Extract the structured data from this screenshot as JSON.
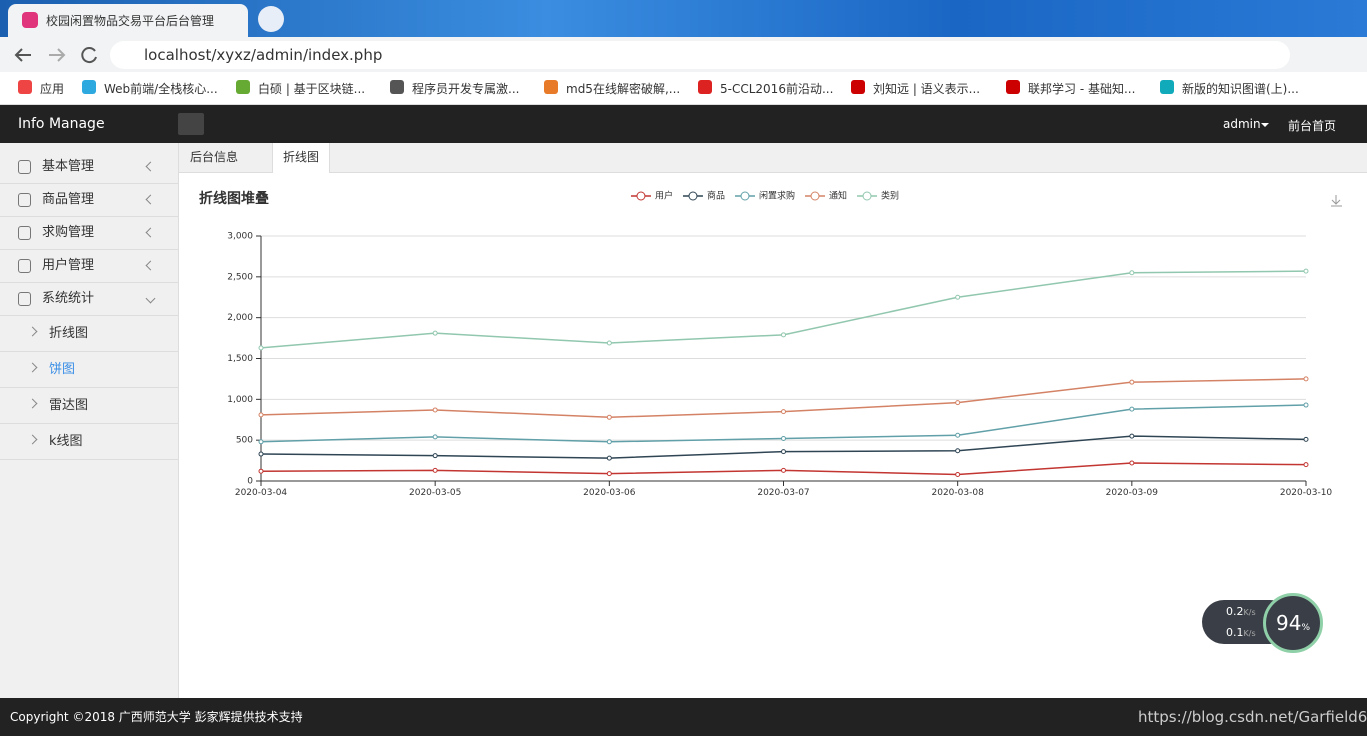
{
  "browser": {
    "tab_title": "校园闲置物品交易平台后台管理",
    "url": "localhost/xyxz/admin/index.php",
    "bookmarks": [
      "应用",
      "Web前端/全栈核心...",
      "白硕 | 基于区块链...",
      "程序员开发专属激...",
      "md5在线解密破解,...",
      "5-CCL2016前沿动...",
      "刘知远 | 语义表示...",
      "联邦学习 - 基础知...",
      "新版的知识图谱(上)..."
    ]
  },
  "header": {
    "brand": "Info Manage",
    "user": "admin",
    "home": "前台首页"
  },
  "sidebar": {
    "menu": [
      "基本管理",
      "商品管理",
      "求购管理",
      "用户管理",
      "系统统计"
    ],
    "submenu": [
      "折线图",
      "饼图",
      "雷达图",
      "k线图"
    ]
  },
  "tabs": [
    "后台信息",
    "折线图"
  ],
  "chart_data": {
    "type": "line",
    "stacked": true,
    "title": "折线图堆叠",
    "categories": [
      "2020-03-04",
      "2020-03-05",
      "2020-03-06",
      "2020-03-07",
      "2020-03-08",
      "2020-03-09",
      "2020-03-10"
    ],
    "series": [
      {
        "name": "用户",
        "color": "#c23531",
        "values": [
          120,
          130,
          90,
          130,
          80,
          220,
          200
        ]
      },
      {
        "name": "商品",
        "color": "#2f4554",
        "values": [
          210,
          180,
          190,
          230,
          290,
          330,
          310
        ]
      },
      {
        "name": "闲置求购",
        "color": "#61a0a8",
        "values": [
          150,
          230,
          200,
          160,
          190,
          330,
          420
        ]
      },
      {
        "name": "通知",
        "color": "#d48265",
        "values": [
          330,
          330,
          300,
          330,
          400,
          330,
          320
        ]
      },
      {
        "name": "类别",
        "color": "#91c7ae",
        "values": [
          820,
          940,
          910,
          940,
          1290,
          1340,
          1320
        ]
      }
    ],
    "ylim": [
      0,
      3000
    ],
    "yticks": [
      0,
      500,
      {
        "value": 1000,
        "label": "1,000"
      },
      {
        "value": 1500,
        "label": "1,500"
      },
      {
        "value": 2000,
        "label": "2,000"
      },
      {
        "value": 2500,
        "label": "2,500"
      },
      {
        "value": 3000,
        "label": "3,000"
      }
    ],
    "grid": true,
    "legend": "top"
  },
  "widget": {
    "up": "0.2",
    "down": "0.1",
    "unit": "K/s",
    "percent": "94",
    "percent_sign": "%"
  },
  "footer": {
    "copyright": "Copyright ©2018 广西师范大学 彭家辉提供技术支持",
    "watermark": "https://blog.csdn.net/Garfield68"
  }
}
